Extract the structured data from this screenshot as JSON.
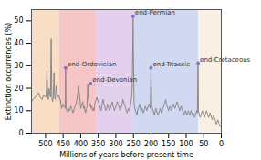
{
  "chart_data": {
    "type": "line",
    "xlabel": "Millions of years before present time",
    "ylabel": "Extinction occurrences (%)",
    "xlim": [
      540,
      0
    ],
    "ylim": [
      0,
      55
    ],
    "xticks": [
      500,
      450,
      400,
      350,
      300,
      250,
      200,
      150,
      100,
      50,
      0
    ],
    "yticks": [
      0,
      10,
      20,
      30,
      40,
      50
    ],
    "color": "#888888",
    "regions": [
      {
        "xmin": 540,
        "xmax": 460,
        "color": "#f5c8a0"
      },
      {
        "xmin": 460,
        "xmax": 355,
        "color": "#f0a0a0"
      },
      {
        "xmin": 355,
        "xmax": 250,
        "color": "#d0b0e0"
      },
      {
        "xmin": 250,
        "xmax": 65,
        "color": "#b0c0e8"
      },
      {
        "xmin": 65,
        "xmax": 0,
        "color": "#f5e6d0"
      }
    ],
    "annotations": [
      {
        "label": "end-Ordovician",
        "x": 443,
        "y": 29,
        "color": "#9966cc"
      },
      {
        "label": "end-Devonian",
        "x": 372,
        "y": 22,
        "color": "#9966cc"
      },
      {
        "label": "end-Permian",
        "x": 251,
        "y": 52,
        "color": "#9966cc"
      },
      {
        "label": "end-Triassic",
        "x": 200,
        "y": 29,
        "color": "#9966cc"
      },
      {
        "label": "end-Cretaceous",
        "x": 66,
        "y": 31,
        "color": "#9966cc"
      }
    ],
    "x": [
      540,
      535,
      530,
      525,
      520,
      515,
      510,
      505,
      500,
      498,
      496,
      494,
      492,
      490,
      488,
      486,
      484,
      482,
      480,
      478,
      476,
      474,
      472,
      470,
      468,
      466,
      464,
      462,
      460,
      458,
      456,
      454,
      452,
      450,
      448,
      446,
      444,
      443,
      442,
      440,
      438,
      436,
      434,
      432,
      430,
      428,
      426,
      424,
      422,
      420,
      418,
      416,
      414,
      412,
      410,
      408,
      406,
      404,
      402,
      400,
      398,
      396,
      394,
      392,
      390,
      388,
      386,
      384,
      382,
      380,
      378,
      376,
      374,
      372,
      370,
      368,
      366,
      364,
      362,
      360,
      358,
      356,
      354,
      352,
      350,
      348,
      346,
      344,
      342,
      340,
      338,
      336,
      334,
      332,
      330,
      328,
      326,
      324,
      322,
      320,
      318,
      316,
      314,
      312,
      310,
      308,
      306,
      304,
      302,
      300,
      298,
      296,
      294,
      292,
      290,
      288,
      286,
      284,
      282,
      280,
      278,
      276,
      274,
      272,
      270,
      268,
      266,
      264,
      262,
      260,
      258,
      256,
      254,
      252,
      251,
      250,
      248,
      246,
      244,
      242,
      240,
      238,
      236,
      234,
      232,
      230,
      228,
      226,
      224,
      222,
      220,
      218,
      216,
      214,
      212,
      210,
      208,
      206,
      204,
      202,
      200,
      198,
      196,
      194,
      192,
      190,
      188,
      186,
      184,
      182,
      180,
      178,
      176,
      174,
      172,
      170,
      168,
      166,
      164,
      162,
      160,
      158,
      156,
      154,
      152,
      150,
      148,
      146,
      144,
      142,
      140,
      138,
      136,
      134,
      132,
      130,
      128,
      126,
      124,
      122,
      120,
      118,
      116,
      114,
      112,
      110,
      108,
      106,
      104,
      102,
      100,
      98,
      96,
      94,
      92,
      90,
      88,
      86,
      84,
      82,
      80,
      78,
      76,
      74,
      72,
      70,
      68,
      66,
      65,
      64,
      62,
      60,
      58,
      56,
      54,
      52,
      50,
      48,
      46,
      44,
      42,
      40,
      38,
      36,
      34,
      32,
      30,
      28,
      26,
      24,
      22,
      20,
      18,
      16,
      14,
      12,
      10,
      8,
      6,
      4,
      2,
      0
    ],
    "values": [
      14,
      15,
      16,
      17,
      18,
      16,
      15,
      17,
      16,
      17,
      28,
      18,
      15,
      20,
      18,
      16,
      42,
      16,
      14,
      16,
      27,
      16,
      15,
      21,
      18,
      17,
      16,
      17,
      15,
      15,
      13,
      11,
      12,
      13,
      12,
      12,
      11,
      29,
      12,
      10,
      10,
      9,
      11,
      10,
      11,
      12,
      11,
      10,
      9,
      10,
      11,
      12,
      13,
      14,
      16,
      18,
      21,
      18,
      15,
      11,
      12,
      13,
      14,
      11,
      12,
      10,
      9,
      11,
      12,
      22,
      15,
      14,
      12,
      13,
      11,
      12,
      10,
      11,
      10,
      13,
      14,
      15,
      16,
      15,
      14,
      13,
      12,
      11,
      10,
      12,
      14,
      15,
      13,
      12,
      11,
      10,
      11,
      13,
      12,
      11,
      10,
      11,
      12,
      13,
      14,
      12,
      11,
      10,
      11,
      12,
      13,
      14,
      13,
      12,
      11,
      10,
      11,
      12,
      13,
      15,
      14,
      13,
      12,
      11,
      10,
      9,
      10,
      11,
      10,
      11,
      13,
      15,
      18,
      35,
      51,
      35,
      13,
      11,
      10,
      9,
      8,
      10,
      11,
      12,
      13,
      11,
      10,
      11,
      10,
      9,
      10,
      11,
      12,
      11,
      10,
      11,
      12,
      13,
      12,
      11,
      29,
      12,
      11,
      10,
      9,
      8,
      10,
      11,
      10,
      9,
      8,
      9,
      10,
      11,
      10,
      9,
      10,
      11,
      12,
      13,
      14,
      15,
      13,
      12,
      11,
      10,
      11,
      12,
      11,
      10,
      11,
      12,
      13,
      12,
      11,
      12,
      13,
      14,
      13,
      12,
      11,
      10,
      11,
      12,
      11,
      10,
      9,
      8,
      9,
      10,
      9,
      8,
      9,
      10,
      9,
      8,
      9,
      10,
      9,
      8,
      9,
      8,
      7,
      8,
      9,
      10,
      9,
      32,
      10,
      9,
      8,
      7,
      8,
      9,
      10,
      9,
      8,
      7,
      8,
      9,
      10,
      9,
      8,
      7,
      8,
      9,
      8,
      7,
      6,
      7,
      8,
      7,
      6,
      5,
      4,
      5,
      6,
      5,
      4,
      3,
      3,
      3
    ]
  }
}
